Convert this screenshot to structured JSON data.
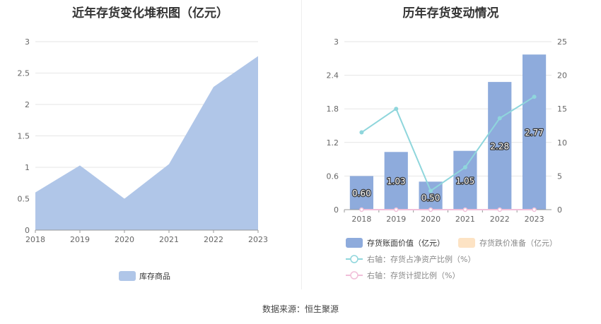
{
  "left_title": "近年存货变化堆积图（亿元）",
  "right_title": "历年存货变动情况",
  "source": "数据来源：恒生聚源",
  "colors": {
    "area": "#b0c6e8",
    "bar": "#8eabdc",
    "line_turnover": "#8fd6dc",
    "line_provision": "#f1bfd9",
    "impairment": "#fde3c4",
    "grid": "#e6e6e6",
    "axis_text": "#666666"
  },
  "chart_data": [
    {
      "type": "area",
      "title": "近年存货变化堆积图（亿元）",
      "categories": [
        "2018",
        "2019",
        "2020",
        "2021",
        "2022",
        "2023"
      ],
      "series": [
        {
          "name": "库存商品",
          "values": [
            0.6,
            1.03,
            0.5,
            1.05,
            2.28,
            2.77
          ]
        }
      ],
      "y_ticks": [
        "0",
        "0.5",
        "1",
        "1.5",
        "2",
        "2.5",
        "3"
      ],
      "ylim": [
        0,
        3
      ],
      "grid": true,
      "legend_position": "bottom"
    },
    {
      "type": "bar",
      "title": "历年存货变动情况",
      "categories": [
        "2018",
        "2019",
        "2020",
        "2021",
        "2022",
        "2023"
      ],
      "series": [
        {
          "name": "存货账面价值（亿元）",
          "type": "bar",
          "axis": "left",
          "values": [
            0.6,
            1.03,
            0.5,
            1.05,
            2.28,
            2.77
          ],
          "labels": [
            "0.60",
            "1.03",
            "0.50",
            "1.05",
            "2.28",
            "2.77"
          ]
        },
        {
          "name": "存货跌价准备（亿元）",
          "type": "bar",
          "axis": "left",
          "values": [
            0,
            0,
            0,
            0,
            0,
            0
          ]
        },
        {
          "name": "右轴：存货占净资产比例（%）",
          "type": "line",
          "axis": "right",
          "values": [
            11.5,
            15.0,
            2.8,
            6.3,
            13.6,
            16.8
          ]
        },
        {
          "name": "右轴：存货计提比例（%）",
          "type": "line",
          "axis": "right",
          "values": [
            0,
            0,
            0,
            0,
            0,
            0
          ]
        }
      ],
      "y_left_ticks": [
        "0",
        "0.6",
        "1.2",
        "1.8",
        "2.4",
        "3"
      ],
      "y_left_lim": [
        0,
        3
      ],
      "y_right_ticks": [
        "0",
        "5",
        "10",
        "15",
        "20",
        "25"
      ],
      "y_right_lim": [
        0,
        25
      ],
      "grid": true,
      "legend_position": "bottom"
    }
  ]
}
